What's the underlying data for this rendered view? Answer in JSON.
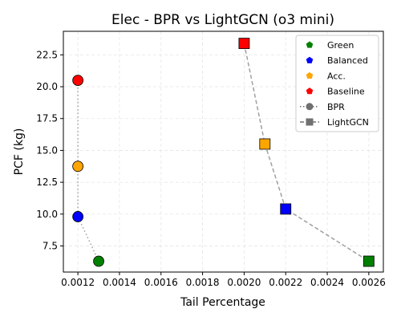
{
  "chart_data": {
    "type": "scatter",
    "title": "Elec - BPR vs LightGCN (o3 mini)",
    "xlabel": "Tail Percentage",
    "ylabel": "PCF (kg)",
    "xlim": [
      0.00113,
      0.00267
    ],
    "ylim": [
      5.45,
      24.35
    ],
    "xticks": [
      "0.0012",
      "0.0014",
      "0.0016",
      "0.0018",
      "0.0020",
      "0.0022",
      "0.0024",
      "0.0026"
    ],
    "xtick_values": [
      0.0012,
      0.0014,
      0.0016,
      0.0018,
      0.002,
      0.0022,
      0.0024,
      0.0026
    ],
    "yticks": [
      "7.5",
      "10.0",
      "12.5",
      "15.0",
      "17.5",
      "20.0",
      "22.5"
    ],
    "ytick_values": [
      7.5,
      10.0,
      12.5,
      15.0,
      17.5,
      20.0,
      22.5
    ],
    "grid": true,
    "legend_position": "top-right",
    "colors": {
      "Green": "#008000",
      "Balanced": "#0000ff",
      "Acc.": "#ffa500",
      "Baseline": "#ff0000",
      "line": "#a0a0a0"
    },
    "series": [
      {
        "name": "BPR",
        "marker": "circle",
        "line_style": "dotted",
        "points": [
          {
            "label": "Baseline",
            "x": 0.0012,
            "y": 20.5
          },
          {
            "label": "Acc.",
            "x": 0.0012,
            "y": 13.75
          },
          {
            "label": "Balanced",
            "x": 0.0012,
            "y": 9.8
          },
          {
            "label": "Green",
            "x": 0.0013,
            "y": 6.3
          }
        ]
      },
      {
        "name": "LightGCN",
        "marker": "square",
        "line_style": "dashed",
        "points": [
          {
            "label": "Baseline",
            "x": 0.002,
            "y": 23.4
          },
          {
            "label": "Acc.",
            "x": 0.0021,
            "y": 15.5
          },
          {
            "label": "Balanced",
            "x": 0.0022,
            "y": 10.4
          },
          {
            "label": "Green",
            "x": 0.0026,
            "y": 6.3
          }
        ]
      }
    ],
    "legend": {
      "color_entries": [
        "Green",
        "Balanced",
        "Acc.",
        "Baseline"
      ],
      "style_entries": [
        "BPR",
        "LightGCN"
      ]
    }
  }
}
